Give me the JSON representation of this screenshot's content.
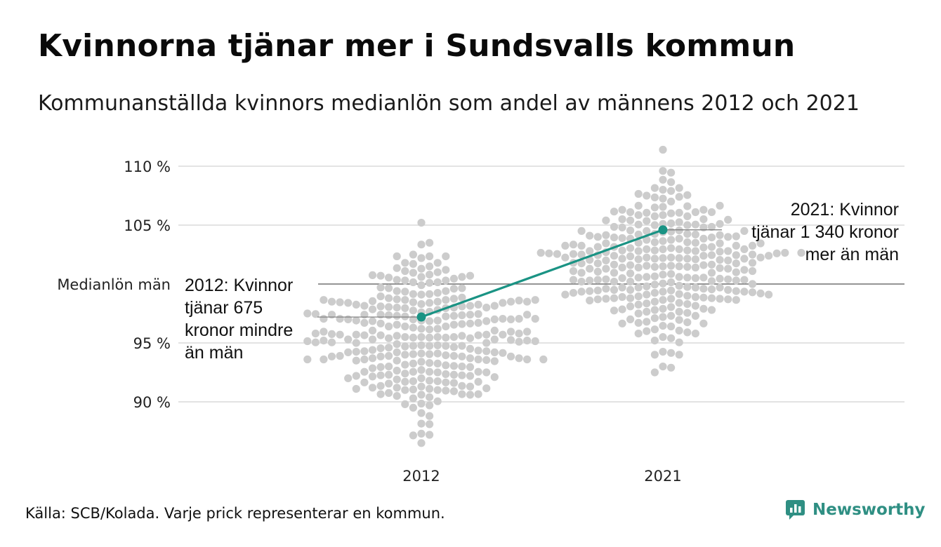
{
  "header": {
    "title": "Kvinnorna tjänar mer i Sundsvalls kommun",
    "subtitle": "Kommunanställda kvinnors medianlön som andel av männens 2012 och 2021"
  },
  "footer": {
    "source": "Källa: SCB/Kolada. Varje prick representerar en kommun.",
    "brand": "Newsworthy"
  },
  "colors": {
    "dots": "#cccccc",
    "highlight": "#1a9384",
    "gridline": "#e3e3e3",
    "reference_line": "#555555",
    "brand": "#2f8f83"
  },
  "chart_data": {
    "type": "scatter",
    "subtype": "beeswarm",
    "title": "Kvinnorna tjänar mer i Sundsvalls kommun",
    "subtitle": "Kommunanställda kvinnors medianlön som andel av männens 2012 och 2021",
    "unit": "%",
    "categories": [
      "2012",
      "2021"
    ],
    "y_ticks": [
      90,
      95,
      105,
      110
    ],
    "y_tick_labels": [
      "90 %",
      "95 %",
      "105 %",
      "110 %"
    ],
    "ylim": [
      86,
      112
    ],
    "grid": true,
    "reference_line": {
      "value": 100,
      "label": "Medianlön män"
    },
    "swarm_shape": [
      {
        "category": "2012",
        "min": 86.5,
        "max": 105.2,
        "center": 95.5,
        "spread": 3.4
      },
      {
        "category": "2021",
        "min": 92.5,
        "max": 111.4,
        "center": 101.5,
        "spread": 3.3
      }
    ],
    "highlight": {
      "name": "Sundsvall",
      "values": [
        {
          "x": "2012",
          "y": 97.2,
          "label": "2012: Kvinnor tjänar 675 kronor mindre än män"
        },
        {
          "x": "2021",
          "y": 104.6,
          "label": "2021: Kvinnor tjänar 1 340 kronor mer än män"
        }
      ]
    }
  }
}
